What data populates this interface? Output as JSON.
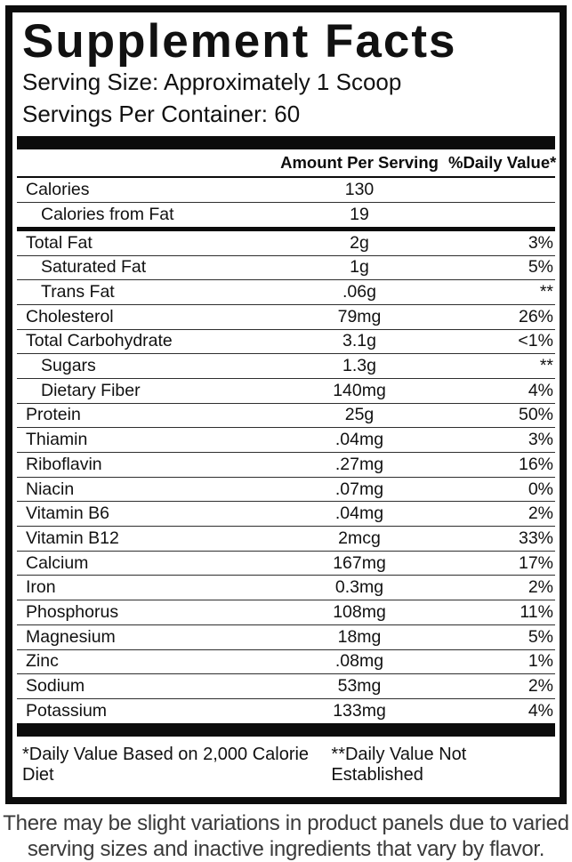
{
  "panel": {
    "title": "Supplement Facts",
    "serving_size": "Serving Size: Approximately 1 Scoop",
    "servings_per_container": "Servings Per Container: 60",
    "columns": {
      "amount": "Amount Per Serving",
      "daily_value": "%Daily Value*"
    },
    "rows": [
      {
        "label": "Calories",
        "amount": "130",
        "dv": "",
        "indent": false,
        "divider_below": "thin"
      },
      {
        "label": "Calories from Fat",
        "amount": "19",
        "dv": "",
        "indent": true,
        "divider_below": "thick"
      },
      {
        "label": "Total Fat",
        "amount": "2g",
        "dv": "3%",
        "indent": false,
        "divider_below": "thin"
      },
      {
        "label": "Saturated Fat",
        "amount": "1g",
        "dv": "5%",
        "indent": true,
        "divider_below": "thin"
      },
      {
        "label": "Trans Fat",
        "amount": ".06g",
        "dv": "**",
        "indent": true,
        "divider_below": "thin"
      },
      {
        "label": "Cholesterol",
        "amount": "79mg",
        "dv": "26%",
        "indent": false,
        "divider_below": "thin"
      },
      {
        "label": "Total Carbohydrate",
        "amount": "3.1g",
        "dv": "<1%",
        "indent": false,
        "divider_below": "thin"
      },
      {
        "label": "Sugars",
        "amount": "1.3g",
        "dv": "**",
        "indent": true,
        "divider_below": "thin"
      },
      {
        "label": "Dietary Fiber",
        "amount": "140mg",
        "dv": "4%",
        "indent": true,
        "divider_below": "thin"
      },
      {
        "label": "Protein",
        "amount": "25g",
        "dv": "50%",
        "indent": false,
        "divider_below": "thin"
      },
      {
        "label": "Thiamin",
        "amount": ".04mg",
        "dv": "3%",
        "indent": false,
        "divider_below": "thin"
      },
      {
        "label": "Riboflavin",
        "amount": ".27mg",
        "dv": "16%",
        "indent": false,
        "divider_below": "thin"
      },
      {
        "label": "Niacin",
        "amount": ".07mg",
        "dv": "0%",
        "indent": false,
        "divider_below": "thin"
      },
      {
        "label": "Vitamin B6",
        "amount": ".04mg",
        "dv": "2%",
        "indent": false,
        "divider_below": "thin"
      },
      {
        "label": "Vitamin B12",
        "amount": "2mcg",
        "dv": "33%",
        "indent": false,
        "divider_below": "thin"
      },
      {
        "label": "Calcium",
        "amount": "167mg",
        "dv": "17%",
        "indent": false,
        "divider_below": "thin"
      },
      {
        "label": "Iron",
        "amount": "0.3mg",
        "dv": "2%",
        "indent": false,
        "divider_below": "thin"
      },
      {
        "label": "Phosphorus",
        "amount": "108mg",
        "dv": "11%",
        "indent": false,
        "divider_below": "thin"
      },
      {
        "label": "Magnesium",
        "amount": "18mg",
        "dv": "5%",
        "indent": false,
        "divider_below": "thin"
      },
      {
        "label": "Zinc",
        "amount": ".08mg",
        "dv": "1%",
        "indent": false,
        "divider_below": "thin"
      },
      {
        "label": "Sodium",
        "amount": "53mg",
        "dv": "2%",
        "indent": false,
        "divider_below": "thin"
      },
      {
        "label": "Potassium",
        "amount": "133mg",
        "dv": "4%",
        "indent": false,
        "divider_below": "none"
      }
    ],
    "footnotes": {
      "left": "*Daily Value Based on 2,000 Calorie Diet",
      "right": "**Daily Value Not Established"
    }
  },
  "disclaimer": {
    "line1": "There may be slight variations in product panels due to varied",
    "line2": "serving sizes and inactive ingredients that vary by flavor."
  },
  "colors": {
    "ink": "#0c0c0c",
    "background": "#ffffff",
    "disclaimer_text": "#3a3a3a"
  }
}
